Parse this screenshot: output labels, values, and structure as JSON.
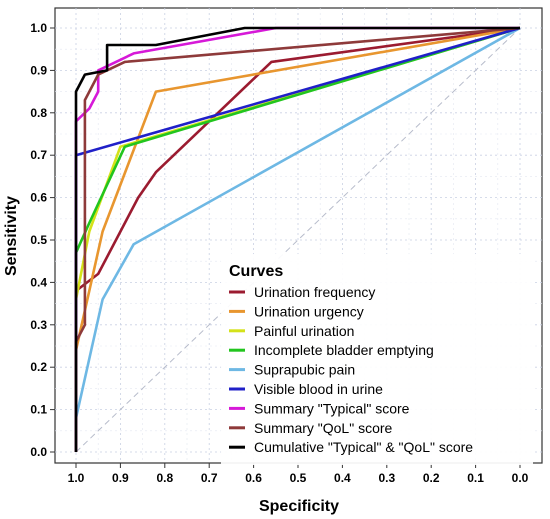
{
  "chart_data": {
    "type": "line",
    "xlabel": "Specificity",
    "ylabel": "Sensitivity",
    "x_reversed": true,
    "xlim": [
      1.0,
      0.0
    ],
    "ylim": [
      0.0,
      1.0
    ],
    "x_ticks": [
      "1.0",
      "0.9",
      "0.8",
      "0.7",
      "0.6",
      "0.5",
      "0.4",
      "0.3",
      "0.2",
      "0.1",
      "0.0"
    ],
    "y_ticks": [
      "0.0",
      "0.1",
      "0.2",
      "0.3",
      "0.4",
      "0.5",
      "0.6",
      "0.7",
      "0.8",
      "0.9",
      "1.0"
    ],
    "grid": true,
    "diagonal_reference": true,
    "legend_placement": "bottom-right",
    "legend_title": "Curves",
    "series": [
      {
        "name": "Urination frequency",
        "color": "#9B1B30",
        "points": [
          [
            1.0,
            0.0
          ],
          [
            1.0,
            0.38
          ],
          [
            0.95,
            0.42
          ],
          [
            0.86,
            0.6
          ],
          [
            0.82,
            0.66
          ],
          [
            0.56,
            0.92
          ],
          [
            0.0,
            1.0
          ]
        ]
      },
      {
        "name": "Urination urgency",
        "color": "#E8962F",
        "points": [
          [
            1.0,
            0.0
          ],
          [
            1.0,
            0.24
          ],
          [
            0.94,
            0.52
          ],
          [
            0.82,
            0.85
          ],
          [
            0.0,
            1.0
          ]
        ]
      },
      {
        "name": "Painful urination",
        "color": "#D4E21A",
        "points": [
          [
            1.0,
            0.0
          ],
          [
            1.0,
            0.36
          ],
          [
            0.97,
            0.52
          ],
          [
            0.9,
            0.72
          ],
          [
            0.0,
            1.0
          ]
        ]
      },
      {
        "name": "Incomplete bladder emptying",
        "color": "#22C51E",
        "points": [
          [
            1.0,
            0.0
          ],
          [
            1.0,
            0.47
          ],
          [
            0.97,
            0.54
          ],
          [
            0.89,
            0.72
          ],
          [
            0.0,
            1.0
          ]
        ]
      },
      {
        "name": "Suprapubic pain",
        "color": "#6EB8E4",
        "points": [
          [
            1.0,
            0.0
          ],
          [
            1.0,
            0.08
          ],
          [
            0.94,
            0.36
          ],
          [
            0.87,
            0.49
          ],
          [
            0.0,
            1.0
          ]
        ]
      },
      {
        "name": "Visible blood in urine",
        "color": "#2020C8",
        "points": [
          [
            1.0,
            0.0
          ],
          [
            1.0,
            0.7
          ],
          [
            0.0,
            1.0
          ]
        ]
      },
      {
        "name": "Summary \"Typical\" score",
        "color": "#D619D8",
        "points": [
          [
            1.0,
            0.0
          ],
          [
            1.0,
            0.78
          ],
          [
            0.97,
            0.81
          ],
          [
            0.95,
            0.85
          ],
          [
            0.95,
            0.9
          ],
          [
            0.87,
            0.94
          ],
          [
            0.55,
            1.0
          ],
          [
            0.0,
            1.0
          ]
        ]
      },
      {
        "name": "Summary \"QoL\" score",
        "color": "#8E3A3A",
        "points": [
          [
            1.0,
            0.0
          ],
          [
            1.0,
            0.26
          ],
          [
            0.98,
            0.3
          ],
          [
            0.98,
            0.83
          ],
          [
            0.95,
            0.89
          ],
          [
            0.89,
            0.92
          ],
          [
            0.0,
            1.0
          ]
        ]
      },
      {
        "name": "Cumulative \"Typical\" & \"QoL\" score",
        "color": "#000000",
        "points": [
          [
            1.0,
            0.0
          ],
          [
            1.0,
            0.85
          ],
          [
            0.98,
            0.89
          ],
          [
            0.93,
            0.9
          ],
          [
            0.93,
            0.96
          ],
          [
            0.82,
            0.96
          ],
          [
            0.62,
            1.0
          ],
          [
            0.0,
            1.0
          ]
        ]
      }
    ]
  }
}
